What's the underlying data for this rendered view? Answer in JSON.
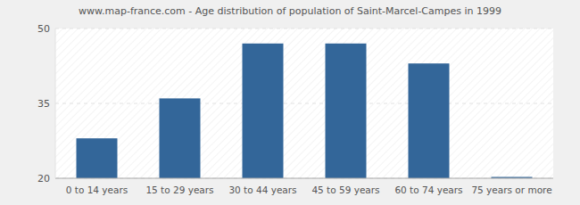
{
  "chart_data": {
    "type": "bar",
    "title": "www.map-france.com - Age distribution of population of Saint-Marcel-Campes in 1999",
    "categories": [
      "0 to 14 years",
      "15 to 29 years",
      "30 to 44 years",
      "45 to 59 years",
      "60 to 74 years",
      "75 years or more"
    ],
    "values": [
      28,
      36,
      47,
      47,
      43,
      20
    ],
    "color": "#336699",
    "ylim": [
      20,
      50
    ],
    "yticks": [
      20,
      35,
      50
    ],
    "grid": true
  }
}
